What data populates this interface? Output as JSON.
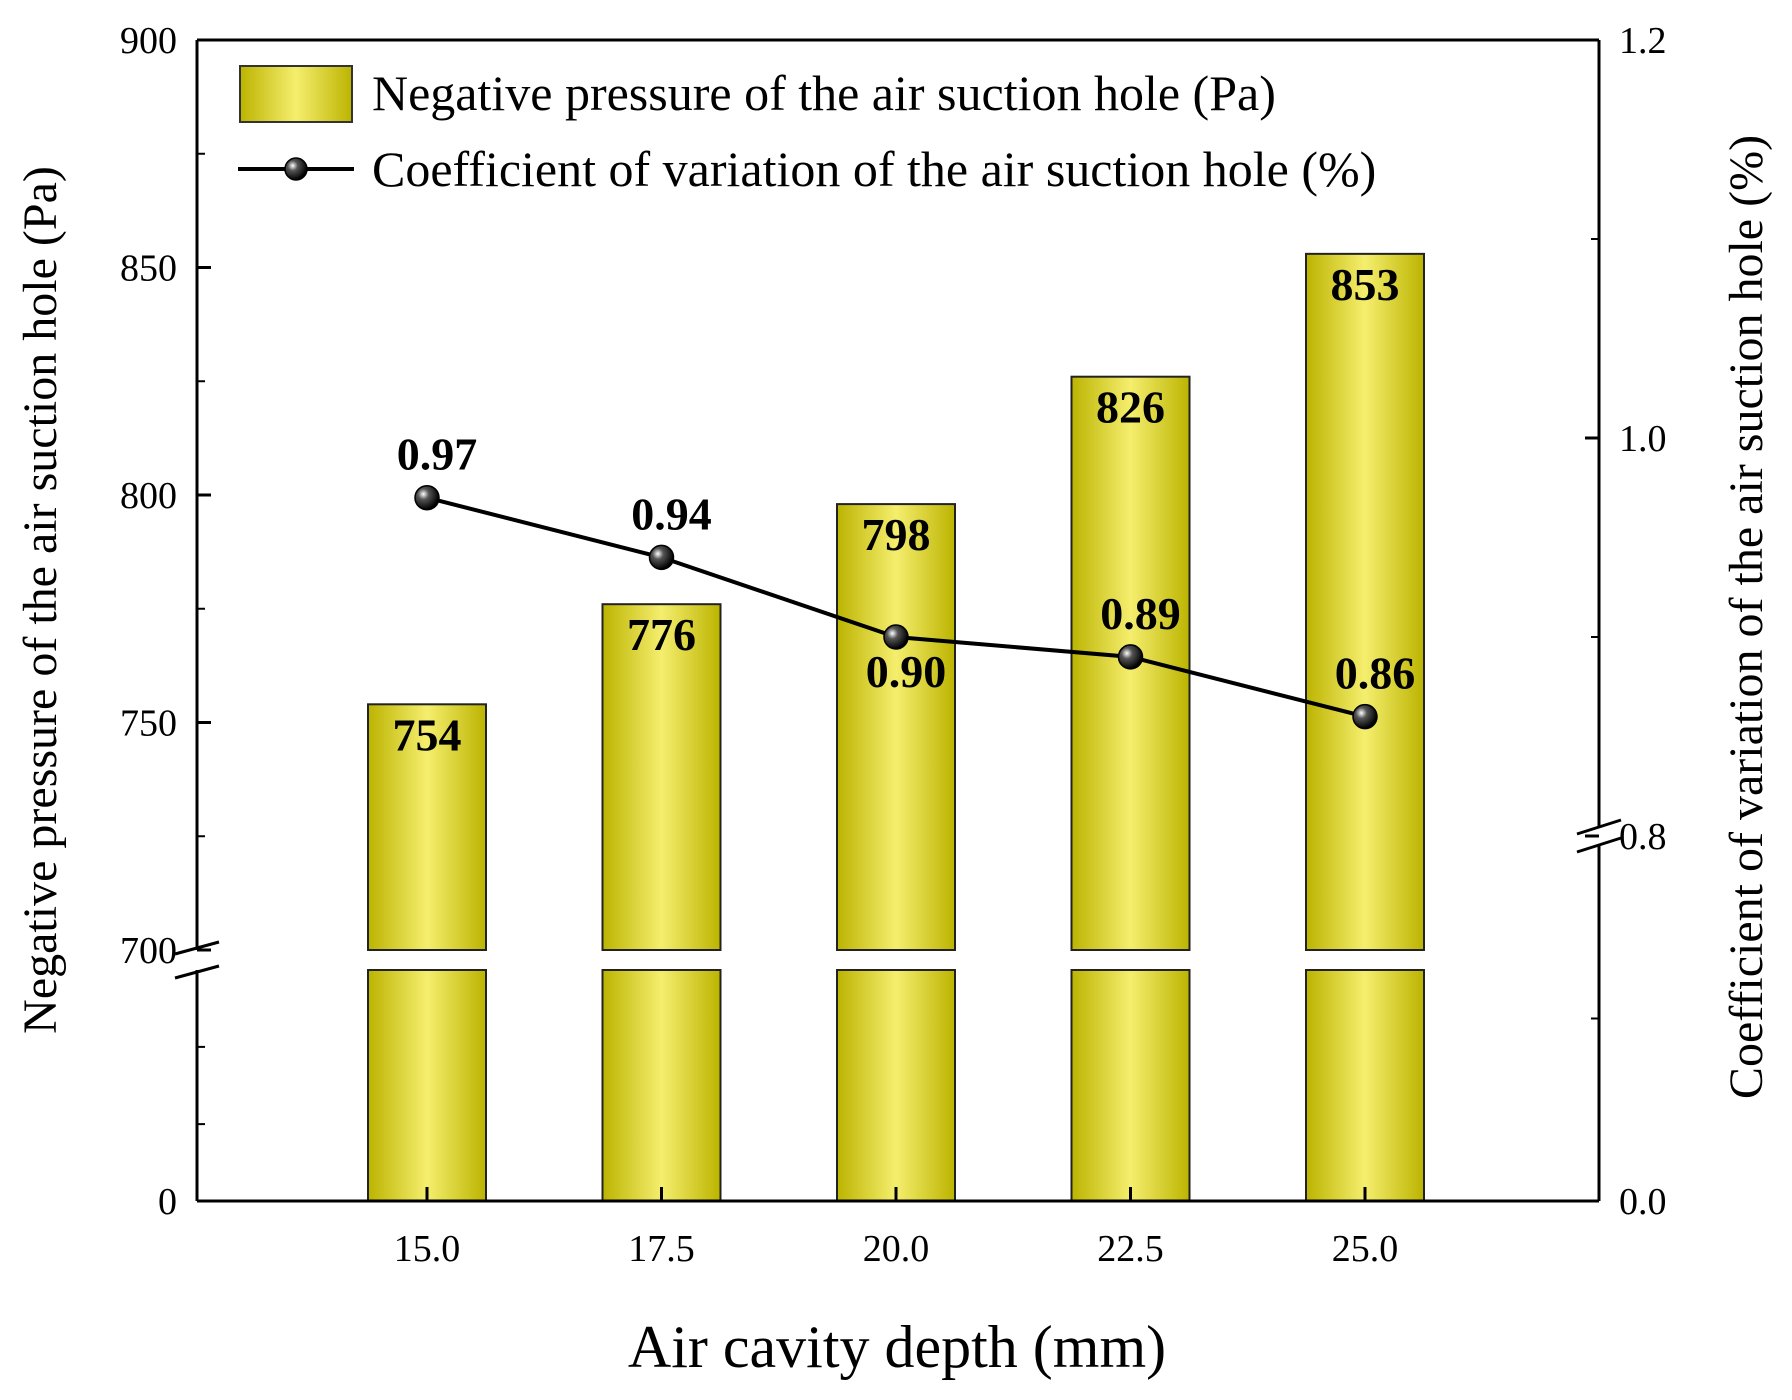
{
  "chart_data": {
    "type": "bar",
    "categories": [
      "15.0",
      "17.5",
      "20.0",
      "22.5",
      "25.0"
    ],
    "series": [
      {
        "name": "Negative pressure of the air suction hole (Pa)",
        "axis": "left",
        "type": "bar",
        "values": [
          754,
          776,
          798,
          826,
          853
        ],
        "labels": [
          "754",
          "776",
          "798",
          "826",
          "853"
        ],
        "color": "#d4cc1a"
      },
      {
        "name": "Coefficient of variation of the air suction hole (%)",
        "axis": "right",
        "type": "line",
        "values": [
          0.97,
          0.94,
          0.9,
          0.89,
          0.86
        ],
        "labels": [
          "0.97",
          "0.94",
          "0.90",
          "0.89",
          "0.86"
        ],
        "color": "#000000"
      }
    ],
    "xlabel": "Air cavity depth (mm)",
    "ylabel_left": "Negative pressure of the air suction hole (Pa)",
    "ylabel_right": "Coefficient of variation of the air suction hole (%)",
    "y_left_break": {
      "lower_range": [
        0,
        700
      ],
      "upper_range": [
        700,
        900
      ]
    },
    "y_right_break": {
      "lower_range": [
        0.0,
        0.8
      ],
      "upper_range": [
        0.8,
        1.2
      ]
    },
    "y_left_ticks": [
      "0",
      "700",
      "750",
      "800",
      "850",
      "900"
    ],
    "y_right_ticks": [
      "0.0",
      "0.8",
      "1.0",
      "1.2"
    ],
    "legend_position": "top"
  }
}
